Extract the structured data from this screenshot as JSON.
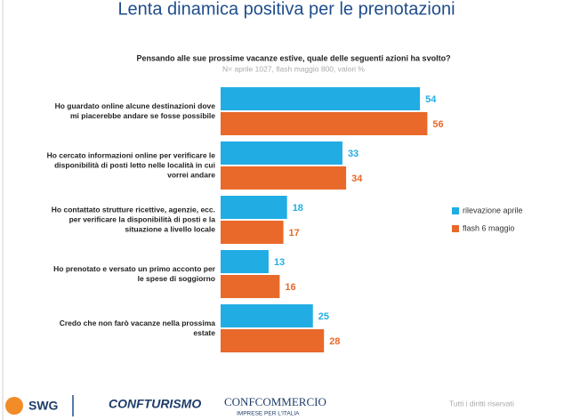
{
  "chart_data": {
    "type": "barh",
    "title": "Lenta dinamica positiva per le prenotazioni",
    "subtitle": "Pensando alle sue prossime vacanze estive, quale delle seguenti azioni ha svolto?",
    "note": "N= aprile 1027, flash maggio 800, valori %",
    "categories": [
      "Ho guardato online alcune destinazioni dove mi piacerebbe andare se fosse possibile",
      "Ho cercato informazioni online per verificare le disponibilità di posti letto nelle località in cui vorrei andare",
      "Ho contattato strutture ricettive, agenzie, ecc. per verificare la disponibilità di posti e la situazione a livello locale",
      "Ho prenotato e versato un primo acconto per le spese di soggiorno",
      "Credo che non farò vacanze nella prossima estate"
    ],
    "series": [
      {
        "name": "rilevazione aprile",
        "color": "#21ade4",
        "values": [
          54,
          33,
          18,
          13,
          25
        ]
      },
      {
        "name": "flash 6 maggio",
        "color": "#e8692a",
        "values": [
          56,
          34,
          17,
          16,
          28
        ]
      }
    ],
    "legend": "right"
  },
  "footer": {
    "logos": [
      "SWG",
      "CONFTURISMO",
      "CONFCOMMERCIO",
      "IMPRESE PER L'ITALIA"
    ],
    "rights": "Tutti i diritti riservati"
  }
}
